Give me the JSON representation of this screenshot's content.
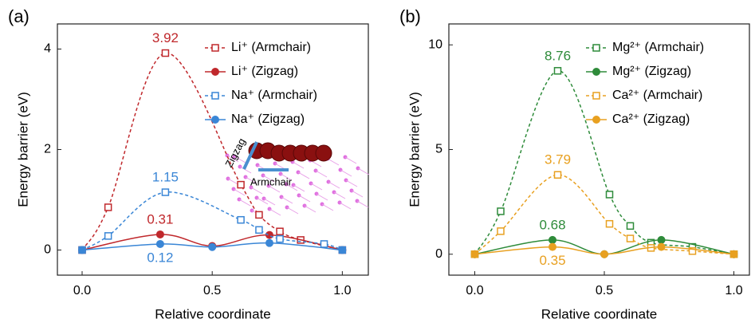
{
  "chart_data": [
    {
      "type": "line",
      "panel_label": "(a)",
      "xlabel": "Relative coordinate",
      "ylabel": "Energy barrier (eV)",
      "xlim": [
        -0.095,
        1.1
      ],
      "ylim": [
        -0.5,
        4.5
      ],
      "xticks": [
        {
          "value": 0,
          "label": "0.0"
        },
        0.5,
        {
          "value": 1,
          "label": "1.0"
        }
      ],
      "yticks": [
        0,
        2,
        4
      ],
      "inset_labels": [
        "Zigzag",
        "Armchair"
      ],
      "series": [
        {
          "name": "Li⁺ (Armchair)",
          "color": "#c0282c",
          "style": "dashed",
          "marker": "square-open",
          "x": [
            0,
            0.1,
            0.32,
            0.61,
            0.68,
            0.76,
            0.84,
            1
          ],
          "values": [
            0,
            0.85,
            3.92,
            1.3,
            0.7,
            0.37,
            0.2,
            0
          ],
          "value_labels": [
            null,
            null,
            "3.92",
            null,
            null,
            null,
            null,
            null
          ]
        },
        {
          "name": "Li⁺ (Zigzag)",
          "color": "#c0282c",
          "style": "solid",
          "marker": "circle",
          "x": [
            0,
            0.3,
            0.5,
            0.72,
            1
          ],
          "values": [
            0,
            0.31,
            0.08,
            0.3,
            0
          ],
          "value_labels": [
            null,
            "0.31",
            null,
            null,
            null
          ]
        },
        {
          "name": "Na⁺ (Armchair)",
          "color": "#3a86d6",
          "style": "dashed",
          "marker": "square-open",
          "x": [
            0,
            0.1,
            0.32,
            0.61,
            0.68,
            0.76,
            0.93,
            1
          ],
          "values": [
            0,
            0.28,
            1.15,
            0.6,
            0.4,
            0.22,
            0.12,
            0
          ],
          "value_labels": [
            null,
            null,
            "1.15",
            null,
            null,
            null,
            null,
            null
          ]
        },
        {
          "name": "Na⁺ (Zigzag)",
          "color": "#3a86d6",
          "style": "solid",
          "marker": "circle",
          "x": [
            0,
            0.3,
            0.5,
            0.72,
            1
          ],
          "values": [
            0,
            0.12,
            0.06,
            0.14,
            0
          ],
          "value_labels": [
            null,
            "0.12",
            null,
            null,
            null
          ]
        }
      ]
    },
    {
      "type": "line",
      "panel_label": "(b)",
      "xlabel": "Relative coordinate",
      "ylabel": "Energy barrier (eV)",
      "xlim": [
        -0.1,
        1.06
      ],
      "ylim": [
        -1,
        11
      ],
      "xticks": [
        {
          "value": 0,
          "label": "0.0"
        },
        0.5,
        {
          "value": 1,
          "label": "1.0"
        }
      ],
      "yticks": [
        0,
        5,
        10
      ],
      "series": [
        {
          "name": "Mg²⁺ (Armchair)",
          "color": "#2e8b3a",
          "style": "dashed",
          "marker": "square-open",
          "x": [
            0,
            0.1,
            0.32,
            0.52,
            0.6,
            0.68,
            0.84,
            1
          ],
          "values": [
            0,
            2.05,
            8.76,
            2.85,
            1.35,
            0.55,
            0.35,
            0
          ],
          "value_labels": [
            null,
            null,
            "8.76",
            null,
            null,
            null,
            null,
            null
          ]
        },
        {
          "name": "Mg²⁺ (Zigzag)",
          "color": "#2e8b3a",
          "style": "solid",
          "marker": "circle",
          "x": [
            0,
            0.3,
            0.5,
            0.72,
            1
          ],
          "values": [
            0,
            0.68,
            0,
            0.68,
            0
          ],
          "value_labels": [
            null,
            "0.68",
            null,
            null,
            null
          ]
        },
        {
          "name": "Ca²⁺ (Armchair)",
          "color": "#e8a020",
          "style": "dashed",
          "marker": "square-open",
          "x": [
            0,
            0.1,
            0.32,
            0.52,
            0.6,
            0.68,
            0.84,
            1
          ],
          "values": [
            0,
            1.1,
            3.79,
            1.45,
            0.75,
            0.3,
            0.15,
            0
          ],
          "value_labels": [
            null,
            null,
            "3.79",
            null,
            null,
            null,
            null,
            null
          ]
        },
        {
          "name": "Ca²⁺ (Zigzag)",
          "color": "#e8a020",
          "style": "solid",
          "marker": "circle",
          "x": [
            0,
            0.3,
            0.5,
            0.72,
            1
          ],
          "values": [
            0,
            0.35,
            0,
            0.35,
            0
          ],
          "value_labels": [
            null,
            "0.35",
            null,
            null,
            null
          ]
        }
      ]
    }
  ]
}
